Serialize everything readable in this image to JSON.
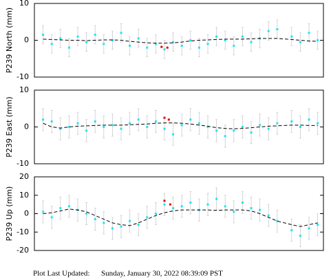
{
  "chart_data": [
    {
      "type": "scatter",
      "ylabel": "P239 North (mm)",
      "xlim": [
        0,
        100
      ],
      "ylim": [
        -10,
        10
      ],
      "yticks": [
        -10,
        0,
        10
      ],
      "x": [
        3,
        6,
        9,
        12,
        15,
        18,
        21,
        24,
        27,
        30,
        33,
        36,
        39,
        42,
        45,
        48,
        51,
        54,
        57,
        60,
        63,
        66,
        69,
        72,
        75,
        78,
        81,
        84,
        89,
        92,
        95,
        98
      ],
      "values": [
        1.5,
        -1,
        0.5,
        -2,
        1,
        -0.5,
        1.5,
        -1,
        0,
        2,
        -1.5,
        0.5,
        -2,
        -1,
        -2.5,
        -0.5,
        -1.5,
        0,
        -2,
        -1,
        1,
        0,
        -1.5,
        1,
        -0.5,
        0.5,
        2.5,
        3,
        1,
        -0.5,
        2,
        0
      ],
      "error": 2.5,
      "model": [
        0.3,
        0.2,
        0.1,
        0,
        0,
        -0.1,
        0,
        0.1,
        0.1,
        0,
        -0.3,
        -0.5,
        -0.7,
        -0.8,
        -0.8,
        -0.7,
        -0.5,
        -0.2,
        0,
        0.1,
        0.2,
        0.3,
        0.3,
        0.3,
        0.4,
        0.5,
        0.5,
        0.5,
        0.2,
        0,
        -0.2,
        -0.3
      ],
      "outliers": {
        "x": [
          44,
          46
        ],
        "values": [
          -1.8,
          -2
        ]
      },
      "color": "#22e3f0",
      "error_color": "#cccccc",
      "model_color": "#000000",
      "outlier_color": "#e00000"
    },
    {
      "type": "scatter",
      "ylabel": "P239 East (mm)",
      "xlim": [
        0,
        100
      ],
      "ylim": [
        -10,
        10
      ],
      "yticks": [
        -10,
        0,
        10
      ],
      "x": [
        3,
        6,
        9,
        12,
        15,
        18,
        21,
        24,
        27,
        30,
        33,
        36,
        39,
        42,
        45,
        48,
        51,
        54,
        57,
        60,
        63,
        66,
        69,
        72,
        75,
        78,
        81,
        84,
        89,
        92,
        95,
        98
      ],
      "values": [
        2,
        1.5,
        -0.5,
        0,
        1,
        -1,
        1.5,
        0,
        0.5,
        -0.5,
        1,
        2,
        0,
        1.5,
        -0.5,
        -2,
        0.5,
        2,
        1,
        0,
        -1,
        -2.5,
        -1,
        0,
        -1.5,
        0.5,
        -0.5,
        1,
        1.5,
        0,
        2,
        1
      ],
      "error": 3,
      "model": [
        1,
        0,
        -0.3,
        0,
        0.2,
        0.3,
        0.4,
        0.5,
        0.5,
        0.5,
        0.6,
        0.7,
        0.8,
        1,
        1.1,
        1.1,
        1,
        0.8,
        0.5,
        0.2,
        -0.2,
        -0.4,
        -0.5,
        -0.4,
        -0.2,
        0,
        0.2,
        0.3,
        0.5,
        0.5,
        0.4,
        0.4
      ],
      "outliers": {
        "x": [
          45,
          46.5
        ],
        "values": [
          2.5,
          2
        ]
      },
      "color": "#22e3f0",
      "error_color": "#cccccc",
      "model_color": "#000000",
      "outlier_color": "#e00000"
    },
    {
      "type": "scatter",
      "ylabel": "P239 Up (mm)",
      "xlim": [
        0,
        100
      ],
      "ylim": [
        -20,
        20
      ],
      "yticks": [
        -20,
        -10,
        0,
        10,
        20
      ],
      "x": [
        3,
        6,
        9,
        12,
        15,
        18,
        21,
        24,
        27,
        30,
        33,
        36,
        39,
        42,
        45,
        48,
        51,
        54,
        57,
        60,
        63,
        66,
        69,
        72,
        75,
        78,
        81,
        84,
        89,
        92,
        95,
        98
      ],
      "values": [
        1,
        -2,
        3,
        4,
        2,
        0,
        -3,
        -5,
        -8,
        -7,
        -4,
        -6,
        -2,
        0,
        5,
        3,
        4,
        6,
        2,
        5,
        8,
        4,
        1,
        6,
        3,
        2,
        -1,
        -4,
        -9,
        -12,
        -8,
        -6
      ],
      "error": 6,
      "model": [
        0,
        0.5,
        1.5,
        2.5,
        2,
        1,
        -1,
        -3,
        -5,
        -6,
        -6.5,
        -5,
        -3,
        -1,
        0.5,
        1.5,
        2,
        2,
        2,
        2,
        1.8,
        2,
        2,
        2,
        1.5,
        0,
        -2,
        -4,
        -6,
        -7,
        -6,
        -5
      ],
      "outliers": {
        "x": [
          45,
          47
        ],
        "values": [
          7,
          5
        ]
      },
      "color": "#22e3f0",
      "error_color": "#cccccc",
      "model_color": "#000000",
      "outlier_color": "#e00000"
    }
  ],
  "footer": {
    "label": "Plot Last Updated:",
    "date": "Sunday, January 30, 2022 08:39:09 PST"
  }
}
